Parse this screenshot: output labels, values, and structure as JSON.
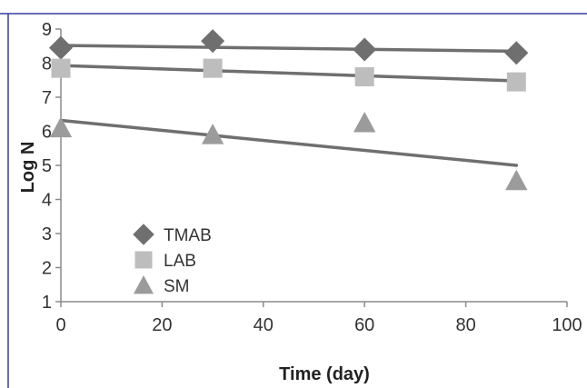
{
  "chart_data": {
    "type": "scatter",
    "xlabel": "Time (day)",
    "ylabel": "Log N",
    "xlim": [
      0,
      100
    ],
    "ylim": [
      1,
      9
    ],
    "xticks": [
      0,
      20,
      40,
      60,
      80,
      100
    ],
    "yticks": [
      1,
      2,
      3,
      4,
      5,
      6,
      7,
      8,
      9
    ],
    "grid": false,
    "legend_position": "bottom-left",
    "series": [
      {
        "name": "TMAB",
        "marker": "diamond",
        "color": "#6f6f6f",
        "x": [
          0,
          30,
          60,
          90
        ],
        "y": [
          8.45,
          8.65,
          8.4,
          8.3
        ],
        "trendline": {
          "x": [
            0,
            90
          ],
          "y": [
            8.52,
            8.35
          ],
          "color": "#6f6f6f"
        }
      },
      {
        "name": "LAB",
        "marker": "square",
        "color": "#bdbdbd",
        "x": [
          0,
          30,
          60,
          90
        ],
        "y": [
          7.85,
          7.85,
          7.6,
          7.45
        ],
        "trendline": {
          "x": [
            0,
            90
          ],
          "y": [
            7.93,
            7.48
          ],
          "color": "#6f6f6f"
        }
      },
      {
        "name": "SM",
        "marker": "triangle",
        "color": "#9b9b9b",
        "x": [
          0,
          30,
          60,
          90
        ],
        "y": [
          6.1,
          5.9,
          6.25,
          4.55
        ],
        "trendline": {
          "x": [
            0,
            90
          ],
          "y": [
            6.32,
            5.0
          ],
          "color": "#6f6f6f"
        }
      }
    ]
  }
}
